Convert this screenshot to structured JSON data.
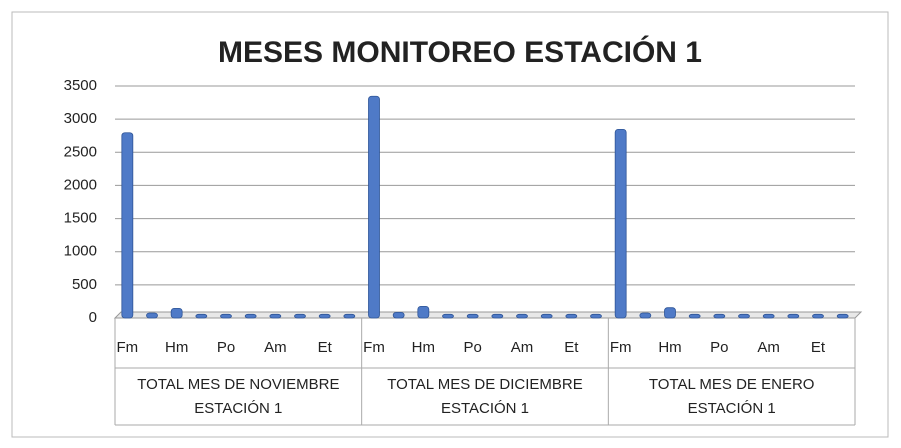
{
  "chart_data": {
    "type": "bar",
    "title": "MESES MONITOREO ESTACIÓN 1",
    "groups": [
      "TOTAL MES DE NOVIEMBRE ESTACIÓN 1",
      "TOTAL MES DE DICIEMBRE ESTACIÓN 1",
      "TOTAL MES DE ENERO ESTACIÓN 1"
    ],
    "categories": [
      "Fm",
      null,
      "Hm",
      null,
      "Po",
      null,
      "Am",
      null,
      "Et",
      null,
      "Fm",
      null,
      "Hm",
      null,
      "Po",
      null,
      "Am",
      null,
      "Et",
      null,
      "Fm",
      null,
      "Hm",
      null,
      "Po",
      null,
      "Am",
      null,
      "Et",
      null
    ],
    "values": [
      2750,
      30,
      100,
      10,
      10,
      10,
      10,
      10,
      10,
      10,
      3300,
      40,
      130,
      10,
      10,
      10,
      10,
      10,
      10,
      10,
      2800,
      30,
      110,
      10,
      10,
      10,
      10,
      10,
      10,
      10
    ],
    "color": "#4f7ac7",
    "ylim": [
      0,
      3500
    ],
    "yticks": [
      0,
      500,
      1000,
      1500,
      2000,
      2500,
      3000,
      3500
    ],
    "grid": true
  }
}
